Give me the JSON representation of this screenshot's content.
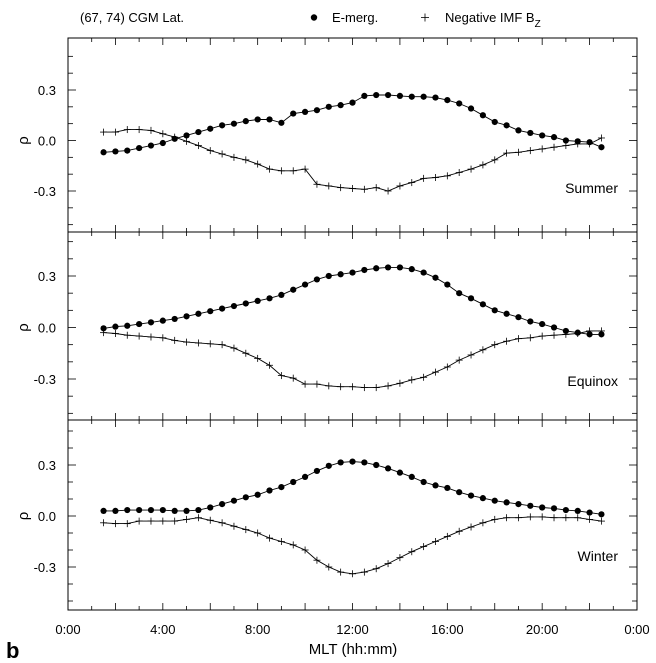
{
  "header": {
    "coords": "(67, 74) CGM Lat.",
    "legend_1": "E-merg.",
    "legend_2_main": "Negative IMF B",
    "legend_2_sub": "Z"
  },
  "figure_label": "b",
  "chart_data": [
    {
      "type": "line",
      "panel": "Summer",
      "ylabel": "ρ",
      "ylim": [
        -0.52,
        0.52
      ],
      "yticks": [
        0.3,
        0.0,
        -0.3
      ],
      "ytick_labels": [
        "0.3",
        "0.0",
        "-0.3"
      ],
      "xlim": [
        0,
        24
      ],
      "series": [
        {
          "name": "E-merg.",
          "marker": "dot",
          "x": [
            1.5,
            2,
            2.5,
            3,
            3.5,
            4,
            4.5,
            5,
            5.5,
            6,
            6.5,
            7,
            7.5,
            8,
            8.5,
            9,
            9.5,
            10,
            10.5,
            11,
            11.5,
            12,
            12.5,
            13,
            13.5,
            14,
            14.5,
            15,
            15.5,
            16,
            16.5,
            17,
            17.5,
            18,
            18.5,
            19,
            19.5,
            20,
            20.5,
            21,
            21.5,
            22,
            22.5
          ],
          "values": [
            -0.07,
            -0.065,
            -0.06,
            -0.045,
            -0.03,
            -0.015,
            0.01,
            0.03,
            0.05,
            0.07,
            0.09,
            0.1,
            0.115,
            0.125,
            0.125,
            0.105,
            0.16,
            0.17,
            0.18,
            0.2,
            0.21,
            0.225,
            0.265,
            0.27,
            0.27,
            0.265,
            0.26,
            0.26,
            0.255,
            0.24,
            0.22,
            0.19,
            0.15,
            0.11,
            0.09,
            0.06,
            0.045,
            0.03,
            0.02,
            0.0,
            -0.005,
            -0.01,
            -0.04
          ]
        },
        {
          "name": "Negative IMF B_Z",
          "marker": "plus",
          "x": [
            1.5,
            2,
            2.5,
            3,
            3.5,
            4,
            4.5,
            5,
            5.5,
            6,
            6.5,
            7,
            7.5,
            8,
            8.5,
            9,
            9.5,
            10,
            10.5,
            11,
            11.5,
            12,
            12.5,
            13,
            13.5,
            14,
            14.5,
            15,
            15.5,
            16,
            16.5,
            17,
            17.5,
            18,
            18.5,
            19,
            19.5,
            20,
            20.5,
            21,
            21.5,
            22,
            22.5
          ],
          "values": [
            0.05,
            0.05,
            0.065,
            0.065,
            0.06,
            0.04,
            0.02,
            -0.005,
            -0.03,
            -0.06,
            -0.08,
            -0.1,
            -0.115,
            -0.14,
            -0.17,
            -0.18,
            -0.18,
            -0.17,
            -0.26,
            -0.27,
            -0.28,
            -0.285,
            -0.29,
            -0.28,
            -0.3,
            -0.27,
            -0.25,
            -0.225,
            -0.22,
            -0.21,
            -0.19,
            -0.17,
            -0.145,
            -0.115,
            -0.075,
            -0.07,
            -0.06,
            -0.05,
            -0.04,
            -0.03,
            -0.02,
            -0.02,
            0.015
          ]
        }
      ]
    },
    {
      "type": "line",
      "panel": "Equinox",
      "ylabel": "ρ",
      "ylim": [
        -0.52,
        0.52
      ],
      "yticks": [
        0.3,
        0.0,
        -0.3
      ],
      "ytick_labels": [
        "0.3",
        "0.0",
        "-0.3"
      ],
      "xlim": [
        0,
        24
      ],
      "series": [
        {
          "name": "E-merg.",
          "marker": "dot",
          "x": [
            1.5,
            2,
            2.5,
            3,
            3.5,
            4,
            4.5,
            5,
            5.5,
            6,
            6.5,
            7,
            7.5,
            8,
            8.5,
            9,
            9.5,
            10,
            10.5,
            11,
            11.5,
            12,
            12.5,
            13,
            13.5,
            14,
            14.5,
            15,
            15.5,
            16,
            16.5,
            17,
            17.5,
            18,
            18.5,
            19,
            19.5,
            20,
            20.5,
            21,
            21.5,
            22,
            22.5
          ],
          "values": [
            -0.005,
            0.005,
            0.01,
            0.02,
            0.03,
            0.04,
            0.05,
            0.065,
            0.08,
            0.095,
            0.11,
            0.125,
            0.14,
            0.155,
            0.17,
            0.19,
            0.22,
            0.25,
            0.28,
            0.3,
            0.31,
            0.32,
            0.335,
            0.345,
            0.35,
            0.35,
            0.34,
            0.32,
            0.29,
            0.25,
            0.2,
            0.17,
            0.135,
            0.1,
            0.08,
            0.06,
            0.035,
            0.02,
            0.0,
            -0.02,
            -0.03,
            -0.04,
            -0.04
          ]
        },
        {
          "name": "Negative IMF B_Z",
          "marker": "plus",
          "x": [
            1.5,
            2,
            2.5,
            3,
            3.5,
            4,
            4.5,
            5,
            5.5,
            6,
            6.5,
            7,
            7.5,
            8,
            8.5,
            9,
            9.5,
            10,
            10.5,
            11,
            11.5,
            12,
            12.5,
            13,
            13.5,
            14,
            14.5,
            15,
            15.5,
            16,
            16.5,
            17,
            17.5,
            18,
            18.5,
            19,
            19.5,
            20,
            20.5,
            21,
            21.5,
            22,
            22.5
          ],
          "values": [
            -0.03,
            -0.035,
            -0.045,
            -0.05,
            -0.055,
            -0.06,
            -0.075,
            -0.085,
            -0.09,
            -0.095,
            -0.1,
            -0.12,
            -0.15,
            -0.18,
            -0.22,
            -0.28,
            -0.295,
            -0.33,
            -0.33,
            -0.34,
            -0.345,
            -0.345,
            -0.35,
            -0.35,
            -0.34,
            -0.325,
            -0.305,
            -0.29,
            -0.26,
            -0.23,
            -0.19,
            -0.16,
            -0.13,
            -0.1,
            -0.08,
            -0.065,
            -0.06,
            -0.05,
            -0.045,
            -0.04,
            -0.035,
            -0.02,
            -0.02
          ]
        }
      ]
    },
    {
      "type": "line",
      "panel": "Winter",
      "ylabel": "ρ",
      "ylim": [
        -0.52,
        0.52
      ],
      "yticks": [
        0.3,
        0.0,
        -0.3
      ],
      "ytick_labels": [
        "0.3",
        "0.0",
        "-0.3"
      ],
      "xlim": [
        0,
        24
      ],
      "xlabel": "MLT (hh:mm)",
      "xticks": [
        0,
        4,
        8,
        12,
        16,
        20,
        24
      ],
      "xtick_labels": [
        "0:00",
        "4:00",
        "8:00",
        "12:00",
        "16:00",
        "20:00",
        "0:00"
      ],
      "series": [
        {
          "name": "E-merg.",
          "marker": "dot",
          "x": [
            1.5,
            2,
            2.5,
            3,
            3.5,
            4,
            4.5,
            5,
            5.5,
            6,
            6.5,
            7,
            7.5,
            8,
            8.5,
            9,
            9.5,
            10,
            10.5,
            11,
            11.5,
            12,
            12.5,
            13,
            13.5,
            14,
            14.5,
            15,
            15.5,
            16,
            16.5,
            17,
            17.5,
            18,
            18.5,
            19,
            19.5,
            20,
            20.5,
            21,
            21.5,
            22,
            22.5
          ],
          "values": [
            0.03,
            0.03,
            0.035,
            0.035,
            0.035,
            0.035,
            0.03,
            0.03,
            0.035,
            0.05,
            0.07,
            0.09,
            0.11,
            0.125,
            0.15,
            0.17,
            0.2,
            0.23,
            0.265,
            0.295,
            0.315,
            0.32,
            0.315,
            0.3,
            0.28,
            0.255,
            0.23,
            0.2,
            0.18,
            0.165,
            0.14,
            0.12,
            0.105,
            0.09,
            0.08,
            0.07,
            0.06,
            0.05,
            0.045,
            0.035,
            0.03,
            0.02,
            0.01
          ]
        },
        {
          "name": "Negative IMF B_Z",
          "marker": "plus",
          "x": [
            1.5,
            2,
            2.5,
            3,
            3.5,
            4,
            4.5,
            5,
            5.5,
            6,
            6.5,
            7,
            7.5,
            8,
            8.5,
            9,
            9.5,
            10,
            10.5,
            11,
            11.5,
            12,
            12.5,
            13,
            13.5,
            14,
            14.5,
            15,
            15.5,
            16,
            16.5,
            17,
            17.5,
            18,
            18.5,
            19,
            19.5,
            20,
            20.5,
            21,
            21.5,
            22,
            22.5
          ],
          "values": [
            -0.04,
            -0.045,
            -0.045,
            -0.03,
            -0.03,
            -0.03,
            -0.03,
            -0.02,
            -0.01,
            -0.025,
            -0.04,
            -0.06,
            -0.08,
            -0.1,
            -0.13,
            -0.15,
            -0.17,
            -0.2,
            -0.26,
            -0.3,
            -0.33,
            -0.34,
            -0.33,
            -0.31,
            -0.28,
            -0.245,
            -0.21,
            -0.18,
            -0.15,
            -0.12,
            -0.09,
            -0.065,
            -0.04,
            -0.02,
            -0.01,
            -0.01,
            -0.005,
            -0.005,
            -0.01,
            -0.01,
            -0.01,
            -0.02,
            -0.03
          ]
        }
      ]
    }
  ]
}
